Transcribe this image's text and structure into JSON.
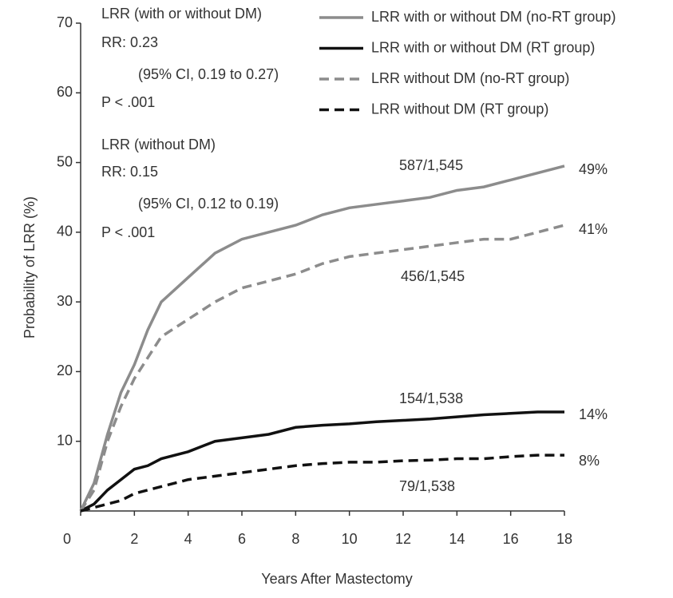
{
  "chart_data": {
    "type": "line",
    "xlabel": "Years After Mastectomy",
    "ylabel": "Probability of LRR (%)",
    "x": [
      0,
      0.5,
      1,
      1.5,
      2,
      2.5,
      3,
      4,
      5,
      6,
      7,
      8,
      9,
      10,
      11,
      12,
      13,
      14,
      15,
      16,
      17,
      18
    ],
    "series": [
      {
        "name": "LRR with or without DM (no-RT group)",
        "color": "#8c8c8c",
        "style": "solid",
        "values": [
          0,
          4,
          11,
          17,
          21,
          26,
          30,
          33.5,
          37,
          39,
          40,
          41,
          42.5,
          43.5,
          44,
          44.5,
          45,
          46,
          46.5,
          47.5,
          48.5,
          49.5
        ]
      },
      {
        "name": "LRR with or without DM (RT group)",
        "color": "#111111",
        "style": "solid",
        "values": [
          0,
          1,
          3,
          4.5,
          6,
          6.5,
          7.5,
          8.5,
          10,
          10.5,
          11,
          12,
          12.3,
          12.5,
          12.8,
          13,
          13.2,
          13.5,
          13.8,
          14,
          14.2,
          14.2
        ]
      },
      {
        "name": "LRR without DM (no-RT group)",
        "color": "#8c8c8c",
        "style": "dashed",
        "values": [
          0,
          3,
          10,
          15,
          19,
          22,
          25,
          27.5,
          30,
          32,
          33,
          34,
          35.5,
          36.5,
          37,
          37.5,
          38,
          38.5,
          39,
          39,
          40,
          41
        ]
      },
      {
        "name": "LRR without DM (RT group)",
        "color": "#111111",
        "style": "dashed",
        "values": [
          0,
          0.5,
          1,
          1.5,
          2.5,
          3,
          3.5,
          4.5,
          5,
          5.5,
          6,
          6.5,
          6.8,
          7,
          7,
          7.2,
          7.3,
          7.5,
          7.5,
          7.8,
          8,
          8
        ]
      }
    ],
    "xlim": [
      0,
      18
    ],
    "xticks": [
      0,
      2,
      4,
      6,
      8,
      10,
      12,
      14,
      16,
      18
    ],
    "ylim": [
      0,
      70
    ],
    "yticks": [
      10,
      20,
      30,
      40,
      50,
      60,
      70
    ],
    "annotations": [
      "LRR (with or without DM)",
      "RR: 0.23",
      "(95% CI, 0.19 to 0.27)",
      "P < .001",
      "LRR (without DM)",
      "RR: 0.15",
      "(95% CI, 0.12 to 0.19)",
      "P < .001",
      "587/1,545",
      "456/1,545",
      "154/1,538",
      "79/1,538",
      "49%",
      "41%",
      "14%",
      "8%"
    ]
  }
}
